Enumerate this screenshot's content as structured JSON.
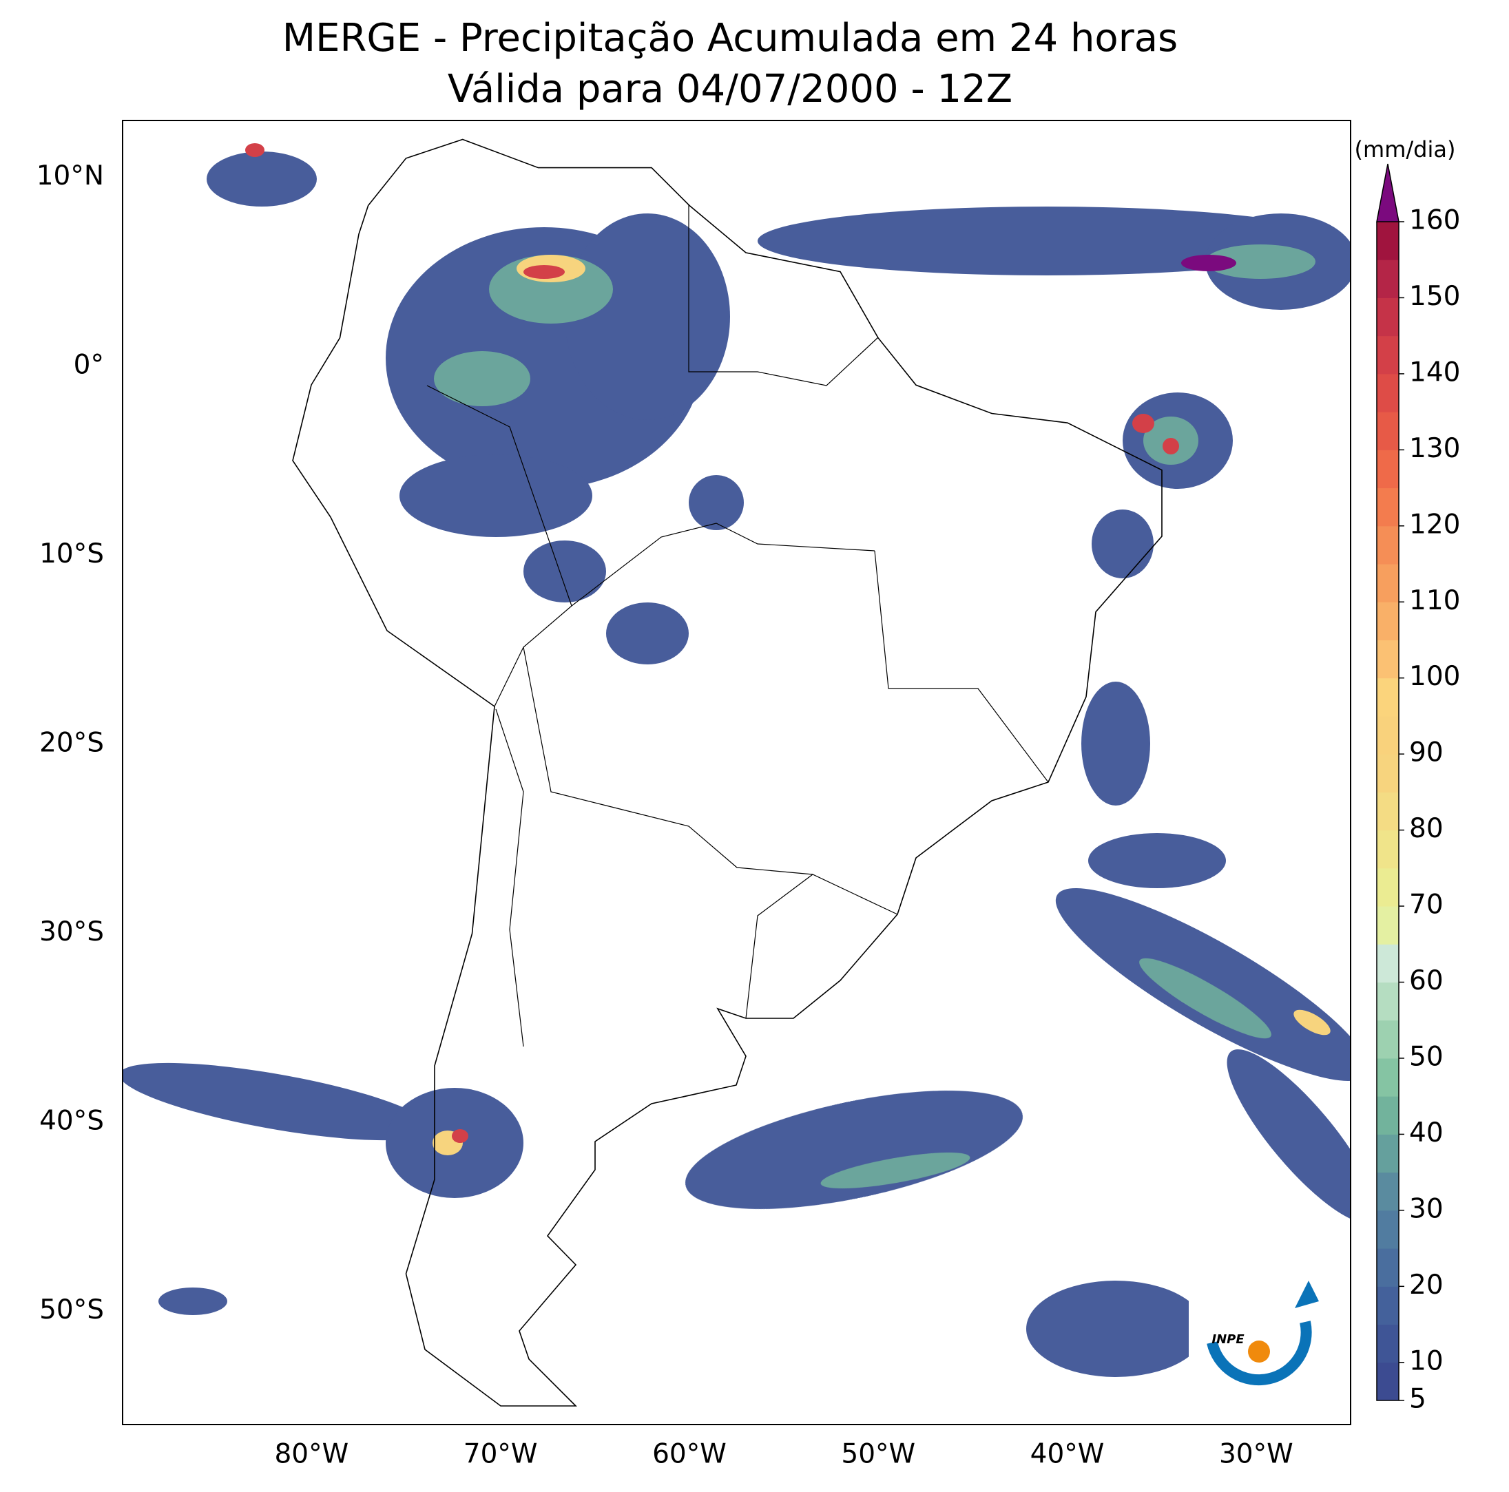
{
  "title": "MERGE - Precipitação Acumulada em 24 horas",
  "subtitle": "Válida para 04/07/2000 - 12Z",
  "map": {
    "xlim": [
      -90,
      -25
    ],
    "ylim": [
      -56,
      13
    ],
    "xticks": [
      {
        "value": -80,
        "label": "80°W"
      },
      {
        "value": -70,
        "label": "70°W"
      },
      {
        "value": -60,
        "label": "60°W"
      },
      {
        "value": -50,
        "label": "50°W"
      },
      {
        "value": -40,
        "label": "40°W"
      },
      {
        "value": -30,
        "label": "30°W"
      }
    ],
    "yticks": [
      {
        "value": 10,
        "label": "10°N"
      },
      {
        "value": 0,
        "label": "0°"
      },
      {
        "value": -10,
        "label": "10°S"
      },
      {
        "value": -20,
        "label": "20°S"
      },
      {
        "value": -30,
        "label": "30°S"
      },
      {
        "value": -40,
        "label": "40°S"
      },
      {
        "value": -50,
        "label": "50°S"
      }
    ]
  },
  "colorbar": {
    "label": "(mm/dia)",
    "levels": [
      5,
      10,
      15,
      20,
      25,
      30,
      35,
      40,
      45,
      50,
      55,
      60,
      65,
      70,
      75,
      80,
      85,
      90,
      95,
      100,
      105,
      110,
      115,
      120,
      125,
      130,
      135,
      140,
      145,
      150,
      155,
      160
    ],
    "colors": [
      "#3c4b91",
      "#3f5596",
      "#44619b",
      "#4a6e9e",
      "#517ca0",
      "#5a8b9f",
      "#65a09d",
      "#72b39c",
      "#85c4a3",
      "#9dd1b0",
      "#b5ddc1",
      "#cde8d8",
      "#e4f0a2",
      "#ebec92",
      "#f0e48a",
      "#f4dc84",
      "#f7d47e",
      "#f9d27c",
      "#fbd47c",
      "#fbc173",
      "#f9b068",
      "#f79f5e",
      "#f58e56",
      "#f37c4e",
      "#ef6a49",
      "#e75a47",
      "#de4c47",
      "#d34048",
      "#c53348",
      "#b42547",
      "#a0143e"
    ],
    "extend_color": "#7b0a7e",
    "ticks": [
      5,
      10,
      20,
      30,
      40,
      50,
      60,
      70,
      80,
      90,
      100,
      110,
      120,
      130,
      140,
      150,
      160
    ]
  },
  "logo": "INPE"
}
